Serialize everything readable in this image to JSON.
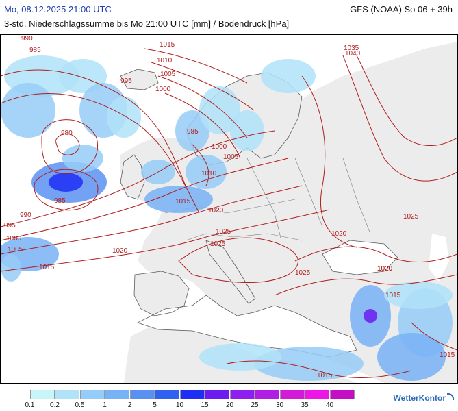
{
  "header": {
    "date_label": "Mo, 08.12.2025 21:00 UTC",
    "model_label": "GFS (NOAA) So 06 + 39h",
    "description": "3-std. Niederschlagssumme bis Mo 21:00 UTC [mm] / Bodendruck [hPa]"
  },
  "map": {
    "isobar_labels": [
      "990",
      "985",
      "1015",
      "1010",
      "1005",
      "995",
      "1000",
      "980",
      "985",
      "990",
      "995",
      "1000",
      "1005",
      "1015",
      "985",
      "1000",
      "1005",
      "1010",
      "1015",
      "1020",
      "1025",
      "1025",
      "1020",
      "1020",
      "1035",
      "1040",
      "1025",
      "1020",
      "1025",
      "1020",
      "1015",
      "1015",
      "1015"
    ]
  },
  "legend": {
    "ticks": [
      "0.1",
      "0.2",
      "0.5",
      "1",
      "2",
      "5",
      "10",
      "15",
      "20",
      "25",
      "30",
      "35",
      "40"
    ],
    "colors": [
      "#ffffff",
      "#c8f5f8",
      "#b0e2f8",
      "#96ccf8",
      "#78b2f6",
      "#5a90f2",
      "#2f62f0",
      "#1e2ef4",
      "#6c1cf0",
      "#8f1ef0",
      "#b01ee6",
      "#d21ad8",
      "#ee16e6",
      "#c40ec4"
    ]
  },
  "logo": {
    "text": "WetterKontor"
  }
}
